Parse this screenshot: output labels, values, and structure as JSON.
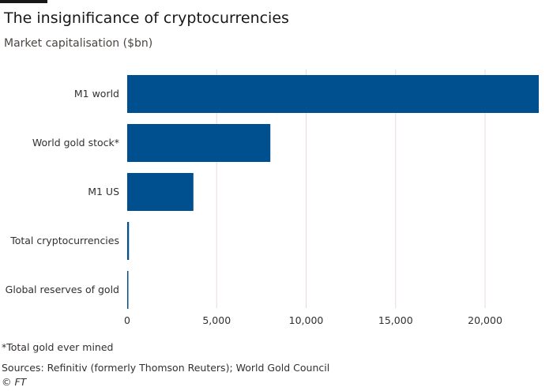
{
  "chart_data": {
    "type": "bar",
    "orientation": "horizontal",
    "title": "The insignificance of cryptocurrencies",
    "subtitle": "Market capitalisation ($bn)",
    "categories": [
      "M1 world",
      "World gold stock*",
      "M1 US",
      "Total cryptocurrencies",
      "Global reserves of gold"
    ],
    "values": [
      23000,
      8000,
      3700,
      100,
      50
    ],
    "xlim": [
      0,
      23000
    ],
    "xticks": [
      0,
      5000,
      10000,
      15000,
      20000
    ],
    "xtick_labels": [
      "0",
      "5,000",
      "10,000",
      "15,000",
      "20,000"
    ],
    "grid": true,
    "bar_color": "#00508f"
  },
  "footnote": "*Total gold ever mined",
  "sources": "Sources: Refinitiv (formerly Thomson Reuters); World Gold Council",
  "credit": "© FT"
}
